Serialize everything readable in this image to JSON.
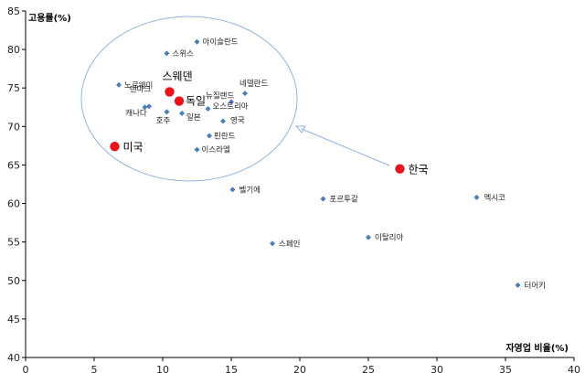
{
  "chart_data": {
    "type": "scatter",
    "title": "",
    "xlabel": "자영업 비율(%)",
    "ylabel": "고용률(%)",
    "xlim": [
      0,
      40
    ],
    "ylim": [
      40,
      85
    ],
    "x_ticks": [
      0,
      5,
      10,
      15,
      20,
      25,
      30,
      35,
      40
    ],
    "y_ticks": [
      40,
      45,
      50,
      55,
      60,
      65,
      70,
      75,
      80,
      85
    ],
    "grid": false,
    "colors": {
      "point": "#4a7ebb",
      "highlight": "#e8141b",
      "ellipse": "#8fb3d9",
      "arrow": "#8fb3d9"
    },
    "points": [
      {
        "label": "아이슬란드",
        "x": 12.5,
        "y": 81.0
      },
      {
        "label": "스위스",
        "x": 10.3,
        "y": 79.5
      },
      {
        "label": "노르웨이",
        "x": 6.8,
        "y": 75.4
      },
      {
        "label": "네델란드",
        "x": 16.0,
        "y": 74.3
      },
      {
        "label": "뉴질랜드",
        "x": 15.0,
        "y": 73.2
      },
      {
        "label": "덴마크",
        "x": 8.7,
        "y": 72.5
      },
      {
        "label": "캐나다",
        "x": 9.0,
        "y": 72.6
      },
      {
        "label": "오스트리아",
        "x": 13.3,
        "y": 72.3
      },
      {
        "label": "일본",
        "x": 11.4,
        "y": 71.7
      },
      {
        "label": "영국",
        "x": 14.4,
        "y": 70.7
      },
      {
        "label": "호주",
        "x": 10.3,
        "y": 71.9
      },
      {
        "label": "핀란드",
        "x": 13.4,
        "y": 68.8
      },
      {
        "label": "이스라엘",
        "x": 12.5,
        "y": 67.0
      },
      {
        "label": "벨기에",
        "x": 15.1,
        "y": 61.8
      },
      {
        "label": "포르투갈",
        "x": 21.7,
        "y": 60.6
      },
      {
        "label": "멕시코",
        "x": 32.9,
        "y": 60.8
      },
      {
        "label": "스페인",
        "x": 18.0,
        "y": 54.8
      },
      {
        "label": "이탈리아",
        "x": 25.0,
        "y": 55.6
      },
      {
        "label": "터어키",
        "x": 35.9,
        "y": 49.4
      }
    ],
    "highlights": [
      {
        "label": "스웨덴",
        "x": 10.5,
        "y": 74.5
      },
      {
        "label": "독일",
        "x": 11.2,
        "y": 73.3
      },
      {
        "label": "미국",
        "x": 6.5,
        "y": 67.4
      },
      {
        "label": "한국",
        "x": 27.3,
        "y": 64.5
      }
    ]
  }
}
